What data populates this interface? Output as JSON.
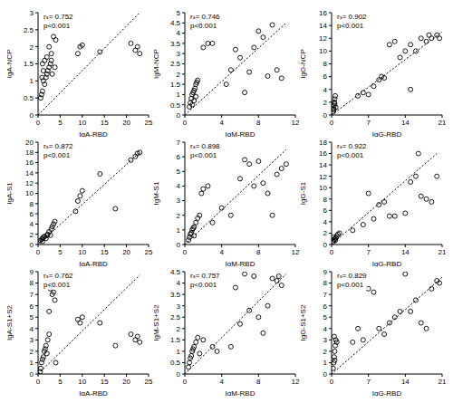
{
  "chart_data": [
    {
      "type": "scatter",
      "x_label": "IgA-RBD",
      "y_label": "IgA-NCP",
      "annotations": [
        "rₛ= 0.752",
        "p<0.001"
      ],
      "color": "#000000",
      "marker": "circle",
      "line_style": "dotted",
      "xlim": [
        0,
        25
      ],
      "xticks": [
        0,
        5,
        10,
        15,
        20,
        25
      ],
      "ylim": [
        0,
        3
      ],
      "yticks": [
        0,
        0.5,
        1,
        1.5,
        2,
        2.5,
        3
      ],
      "x": [
        0.6,
        0.8,
        1,
        1.2,
        1.5,
        1.8,
        2,
        2.2,
        2.5,
        2.8,
        3,
        3.2,
        1,
        1.5,
        2,
        3,
        3.5,
        4,
        2.5,
        1.2,
        0.9,
        3.8,
        9,
        9.5,
        10,
        14,
        21,
        22,
        22.5,
        23
      ],
      "y": [
        0.5,
        0.6,
        0.7,
        1.0,
        0.9,
        1.1,
        1.2,
        1.3,
        1.4,
        1.5,
        1.6,
        1.2,
        1.5,
        1.6,
        1.7,
        1.8,
        2.3,
        2.2,
        2.0,
        1.3,
        1.1,
        1.4,
        1.8,
        2.0,
        2.05,
        1.85,
        2.1,
        1.9,
        2.0,
        1.8
      ],
      "fit_line": {
        "x": [
          0,
          23
        ],
        "y": [
          0,
          3
        ]
      }
    },
    {
      "type": "scatter",
      "x_label": "IgM-RBD",
      "y_label": "IgM-NCP",
      "annotations": [
        "rₛ= 0.746",
        "p<0.001"
      ],
      "color": "#000000",
      "marker": "circle",
      "line_style": "dotted",
      "xlim": [
        0,
        12
      ],
      "xticks": [
        0,
        4,
        8,
        12
      ],
      "ylim": [
        0,
        5
      ],
      "yticks": [
        0,
        0.5,
        1,
        1.5,
        2,
        2.5,
        3,
        3.5,
        4,
        4.5,
        5
      ],
      "x": [
        0.5,
        0.6,
        0.7,
        0.8,
        0.9,
        1,
        1.1,
        1.2,
        1.3,
        0.8,
        1,
        1.4,
        1.2,
        2,
        2.5,
        1.6,
        3,
        4.5,
        5,
        5.5,
        6,
        6.5,
        7,
        7.5,
        8,
        8.5,
        9,
        9.5,
        10,
        10.5
      ],
      "y": [
        0.4,
        0.6,
        0.8,
        1.0,
        1.1,
        1.2,
        1.3,
        1.5,
        1.6,
        0.5,
        0.7,
        1.7,
        0.9,
        3.3,
        3.5,
        4.5,
        3.5,
        1.5,
        2.2,
        3.2,
        2.8,
        1.1,
        2.1,
        3.3,
        4.1,
        3.8,
        1.9,
        4.4,
        2.2,
        1.8
      ],
      "fit_line": {
        "x": [
          0,
          11
        ],
        "y": [
          0,
          4.5
        ]
      }
    },
    {
      "type": "scatter",
      "x_label": "IgG-RBD",
      "y_label": "IgG-NCP",
      "annotations": [
        "rₛ= 0.902",
        "p<0.001"
      ],
      "color": "#000000",
      "marker": "circle",
      "line_style": "dotted",
      "xlim": [
        0,
        21
      ],
      "xticks": [
        0,
        7,
        14,
        21
      ],
      "ylim": [
        0,
        16
      ],
      "yticks": [
        0,
        2,
        4,
        6,
        8,
        10,
        12,
        14,
        16
      ],
      "x": [
        0.3,
        0.4,
        0.5,
        0.5,
        0.6,
        0.7,
        0.4,
        0.8,
        0.6,
        5,
        6,
        7,
        8,
        9,
        9.5,
        10,
        11,
        12,
        13,
        14,
        15,
        15,
        16,
        17,
        18,
        18.5,
        19,
        20,
        20.5
      ],
      "y": [
        0.5,
        1,
        1.5,
        2,
        2.5,
        3,
        0.8,
        1.2,
        1.8,
        3,
        3.5,
        3.2,
        4.5,
        5.5,
        6,
        5.8,
        11,
        11.5,
        9,
        10,
        11,
        4,
        10,
        12,
        11.5,
        12.5,
        12,
        12.5,
        12
      ],
      "fit_line": {
        "x": [
          0,
          21
        ],
        "y": [
          0,
          13
        ]
      }
    },
    {
      "type": "scatter",
      "x_label": "IgA-RBD",
      "y_label": "IgA-S1",
      "annotations": [
        "rₛ= 0.872",
        "p<0.001"
      ],
      "color": "#000000",
      "marker": "circle",
      "line_style": "dotted",
      "xlim": [
        0,
        25
      ],
      "xticks": [
        0,
        5,
        10,
        15,
        20,
        25
      ],
      "ylim": [
        0,
        20
      ],
      "yticks": [
        0,
        2,
        4,
        6,
        8,
        10,
        12,
        14,
        16,
        18,
        20
      ],
      "x": [
        0.5,
        0.8,
        1,
        1.2,
        1.5,
        1.8,
        2,
        2.2,
        2.5,
        3,
        3.2,
        3.5,
        3.8,
        1,
        2.8,
        8.5,
        9,
        9.5,
        10,
        14,
        17.5,
        21,
        22,
        22.5,
        23
      ],
      "y": [
        0.8,
        1,
        1.2,
        1.4,
        1.6,
        1.2,
        1.8,
        2,
        2.5,
        3,
        3.5,
        4,
        4.5,
        0.6,
        1.8,
        6.5,
        8.5,
        9.5,
        10.5,
        13.8,
        7,
        16.5,
        17.2,
        17.8,
        18
      ],
      "fit_line": {
        "x": [
          0,
          23
        ],
        "y": [
          0,
          18
        ]
      }
    },
    {
      "type": "scatter",
      "x_label": "IgM-RBD",
      "y_label": "IgM-S1",
      "annotations": [
        "rₛ= 0.898",
        "p<0.001"
      ],
      "color": "#000000",
      "marker": "circle",
      "line_style": "dotted",
      "xlim": [
        0,
        12
      ],
      "xticks": [
        0,
        4,
        8,
        12
      ],
      "ylim": [
        0,
        7
      ],
      "yticks": [
        0,
        1,
        2,
        3,
        4,
        5,
        6,
        7
      ],
      "x": [
        0.4,
        0.5,
        0.6,
        0.7,
        0.8,
        0.9,
        1,
        1.2,
        1.4,
        1.6,
        1.8,
        2,
        2.5,
        1,
        3,
        4,
        5,
        6,
        6.5,
        7,
        7.5,
        8,
        8.5,
        9,
        9.5,
        10,
        10.5,
        11
      ],
      "y": [
        0.3,
        0.5,
        0.7,
        0.8,
        1,
        1.1,
        1.2,
        1.5,
        1.8,
        2,
        3.5,
        3.8,
        4,
        0.6,
        1.5,
        2.5,
        2,
        4.5,
        5.8,
        5.5,
        4,
        5.7,
        4.2,
        3.5,
        2,
        4.8,
        5.2,
        5.5
      ],
      "fit_line": {
        "x": [
          0,
          11
        ],
        "y": [
          0,
          6.5
        ]
      }
    },
    {
      "type": "scatter",
      "x_label": "IgG-RBD",
      "y_label": "IgG-S1",
      "annotations": [
        "rₛ= 0.922",
        "p<0.001"
      ],
      "color": "#000000",
      "marker": "circle",
      "line_style": "dotted",
      "xlim": [
        0,
        21
      ],
      "xticks": [
        0,
        7,
        14,
        21
      ],
      "ylim": [
        0,
        18
      ],
      "yticks": [
        0,
        2,
        4,
        6,
        8,
        10,
        12,
        14,
        16,
        18
      ],
      "x": [
        0.3,
        0.5,
        0.6,
        0.8,
        1,
        1.2,
        1.5,
        0.4,
        0.7,
        4,
        6,
        7,
        8,
        9,
        10,
        11,
        12,
        14,
        15,
        16,
        16.5,
        17,
        18,
        19,
        20
      ],
      "y": [
        0.5,
        0.8,
        1,
        1.2,
        1.5,
        1.8,
        2,
        1.3,
        0.7,
        2.5,
        3.5,
        9,
        4.5,
        7,
        7.5,
        5,
        5,
        5.5,
        11,
        12,
        16,
        8.5,
        8,
        7.5,
        12
      ],
      "fit_line": {
        "x": [
          0,
          20
        ],
        "y": [
          0,
          16
        ]
      }
    },
    {
      "type": "scatter",
      "x_label": "IgA-RBD",
      "y_label": "IgA-S1+S2",
      "annotations": [
        "rₛ= 0.762",
        "p<0.001"
      ],
      "color": "#000000",
      "marker": "circle",
      "line_style": "dotted",
      "xlim": [
        0,
        25
      ],
      "xticks": [
        0,
        5,
        10,
        15,
        20,
        25
      ],
      "ylim": [
        0,
        9
      ],
      "yticks": [
        0,
        1,
        2,
        3,
        4,
        5,
        6,
        7,
        8,
        9
      ],
      "x": [
        0.5,
        0.6,
        0.8,
        1,
        1.2,
        1.4,
        1.6,
        1.8,
        2,
        2.2,
        2.5,
        2.8,
        3,
        3.2,
        3.5,
        3.8,
        4,
        2.5,
        9,
        9.5,
        10,
        14,
        17.5,
        21,
        22,
        22.5,
        23
      ],
      "y": [
        0.2,
        0.5,
        1,
        1.3,
        1.5,
        2,
        2.2,
        2.5,
        1.8,
        3,
        3.5,
        7.5,
        7.8,
        7,
        7.2,
        6.5,
        1,
        5.5,
        4.8,
        4.5,
        5,
        4.5,
        2.5,
        3.5,
        3,
        3.3,
        2.8
      ],
      "fit_line": {
        "x": [
          0,
          23
        ],
        "y": [
          0,
          8.7
        ]
      }
    },
    {
      "type": "scatter",
      "x_label": "IgM-RBD",
      "y_label": "IgM-S1+S2",
      "annotations": [
        "rₛ= 0.757",
        "p<0.001"
      ],
      "color": "#000000",
      "marker": "circle",
      "line_style": "dotted",
      "xlim": [
        0,
        12
      ],
      "xticks": [
        0,
        4,
        8,
        12
      ],
      "ylim": [
        0,
        4.5
      ],
      "yticks": [
        0,
        0.5,
        1,
        1.5,
        2,
        2.5,
        3,
        3.5,
        4,
        4.5
      ],
      "x": [
        0.4,
        0.5,
        0.6,
        0.7,
        0.8,
        0.9,
        1,
        1.2,
        1.4,
        1.6,
        2,
        3,
        3.5,
        5,
        5.5,
        6,
        6.5,
        7,
        7.5,
        8,
        8.5,
        9,
        9.5,
        10,
        10.2,
        10.5
      ],
      "y": [
        0.3,
        0.5,
        0.7,
        0.8,
        1,
        1.1,
        1.2,
        1.4,
        1.6,
        0.9,
        1.5,
        1.2,
        1,
        1.2,
        3.8,
        2.2,
        4.4,
        2.8,
        4.3,
        2.5,
        1.8,
        3,
        4.2,
        4.1,
        4.3,
        3.9
      ],
      "fit_line": {
        "x": [
          0,
          11
        ],
        "y": [
          0,
          4.4
        ]
      }
    },
    {
      "type": "scatter",
      "x_label": "IgG-RBD",
      "y_label": "IgG-S1+S2",
      "annotations": [
        "rₛ= 0.829",
        "p<0.001"
      ],
      "color": "#000000",
      "marker": "circle",
      "line_style": "dotted",
      "xlim": [
        0,
        21
      ],
      "xticks": [
        0,
        7,
        14,
        21
      ],
      "ylim": [
        0,
        9
      ],
      "yticks": [
        0,
        1,
        2,
        3,
        4,
        5,
        6,
        7,
        8,
        9
      ],
      "x": [
        0.3,
        0.4,
        0.5,
        0.6,
        0.7,
        0.8,
        0.5,
        1,
        0.6,
        4,
        5,
        6,
        7,
        8,
        9,
        10,
        11,
        12,
        13,
        14,
        15,
        16,
        17,
        18,
        19,
        20,
        20.5
      ],
      "y": [
        0.5,
        1,
        1.5,
        2,
        2.5,
        3,
        3.3,
        2.8,
        1.2,
        2.8,
        4,
        3,
        7.5,
        7.2,
        4,
        3.5,
        4.5,
        5,
        5.5,
        8.8,
        5.5,
        6.5,
        4.5,
        4,
        7.5,
        8.2,
        8
      ],
      "fit_line": {
        "x": [
          0,
          21
        ],
        "y": [
          0,
          8.5
        ]
      }
    }
  ]
}
